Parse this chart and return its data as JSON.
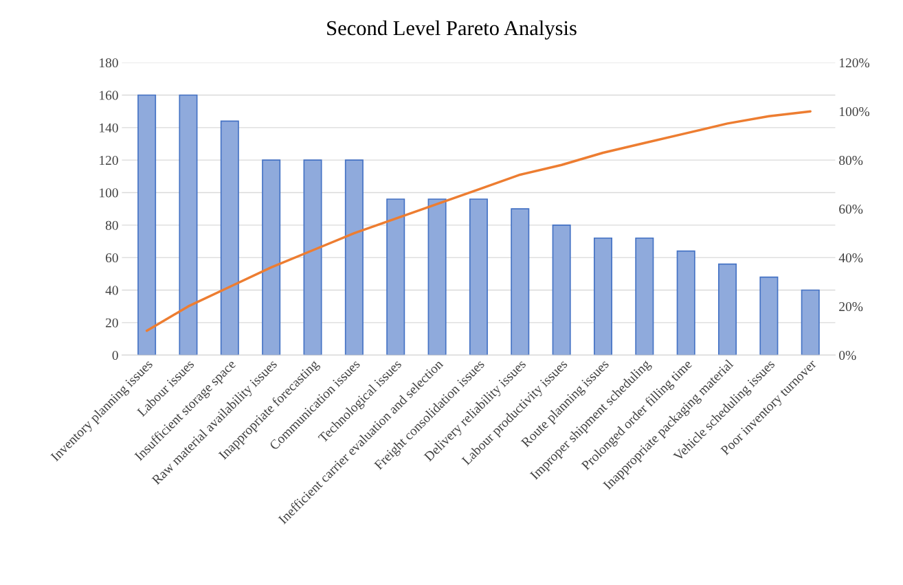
{
  "chart_data": {
    "type": "bar",
    "title": "Second Level Pareto Analysis",
    "categories": [
      "Inventory planning issues",
      "Labour issues",
      "Insufficient storage space",
      "Raw material availability issues",
      "Inappropriate forecasting",
      "Communication issues",
      "Technological issues",
      "Inefficient carrier evaluation and selection",
      "Freight consolidation issues",
      "Delivery reliability issues",
      "Labour productivity issues",
      "Route planning issues",
      "Improper shipment scheduling",
      "Prolonged order filling time",
      "Inappropriate packaging material",
      "Vehicle scheduling issues",
      "Poor inventory turnover"
    ],
    "series": [
      {
        "color": "#8faadc",
        "values": [
          160,
          160,
          144,
          120,
          120,
          120,
          96,
          96,
          96,
          90,
          80,
          72,
          72,
          64,
          56,
          48,
          40
        ]
      },
      {
        "type": "line",
        "axis": "y2",
        "color": "#ed7d31",
        "values": [
          10,
          20,
          28,
          36,
          43,
          50,
          56,
          62,
          68,
          74,
          78,
          83,
          87,
          91,
          95,
          98,
          100
        ]
      }
    ],
    "ylim": [
      0,
      180
    ],
    "yticks": [
      0,
      20,
      40,
      60,
      80,
      100,
      120,
      140,
      160,
      180
    ],
    "y2lim": [
      0,
      120
    ],
    "y2ticks": [
      {
        "value": 0,
        "label": "0%"
      },
      {
        "value": 20,
        "label": "20%"
      },
      {
        "value": 40,
        "label": "40%"
      },
      {
        "value": 60,
        "label": "60%"
      },
      {
        "value": 80,
        "label": "80%"
      },
      {
        "value": 100,
        "label": "100%"
      },
      {
        "value": 120,
        "label": "120%"
      }
    ],
    "grid": "y",
    "marker": "none",
    "line_style": "solid"
  }
}
